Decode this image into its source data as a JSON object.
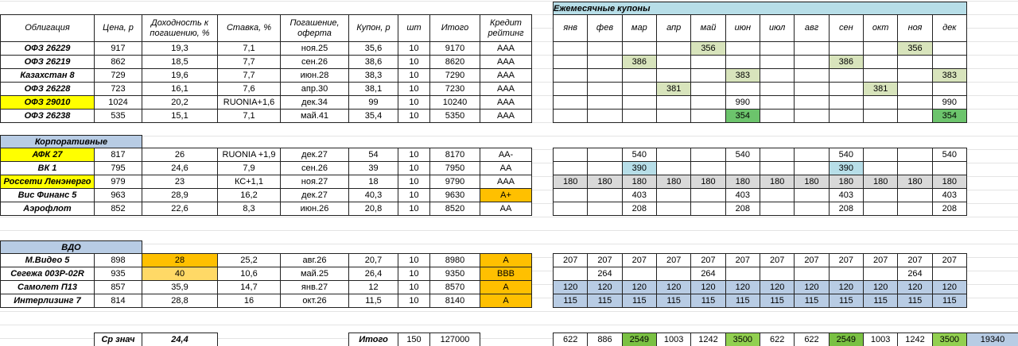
{
  "monthly_title": "Ежемесячные купоны",
  "header": [
    "Облигация",
    "Цена, р",
    "Доходность к погашению, %",
    "Ставка, %",
    "Погашение, оферта",
    "Купон, р",
    "шт",
    "Итого",
    "Кредит рейтинг"
  ],
  "months": [
    "янв",
    "фев",
    "мар",
    "апр",
    "май",
    "июн",
    "июл",
    "авг",
    "сен",
    "окт",
    "ноя",
    "дек"
  ],
  "groups": [
    {
      "rows": [
        {
          "cells": [
            "ОФЗ 26229",
            "917",
            "19,3",
            "7,1",
            "ноя.25",
            "35,6",
            "10",
            "9170",
            "ААА"
          ],
          "coupons": [
            null,
            null,
            null,
            null,
            356,
            null,
            null,
            null,
            null,
            null,
            356,
            null
          ]
        },
        {
          "cells": [
            "ОФЗ 26219",
            "862",
            "18,5",
            "7,7",
            "сен.26",
            "38,6",
            "10",
            "8620",
            "ААА"
          ],
          "coupons": [
            null,
            null,
            386,
            null,
            null,
            null,
            null,
            null,
            386,
            null,
            null,
            null
          ]
        },
        {
          "cells": [
            "Казахстан 8",
            "729",
            "19,6",
            "7,7",
            "июн.28",
            "38,3",
            "10",
            "7290",
            "ААА"
          ],
          "coupons": [
            null,
            null,
            null,
            null,
            null,
            383,
            null,
            null,
            null,
            null,
            null,
            383
          ]
        },
        {
          "cells": [
            "ОФЗ 26228",
            "723",
            "16,1",
            "7,6",
            "апр.30",
            "38,1",
            "10",
            "7230",
            "ААА"
          ],
          "coupons": [
            null,
            null,
            null,
            381,
            null,
            null,
            null,
            null,
            null,
            381,
            null,
            null
          ]
        },
        {
          "cells": [
            "ОФЗ 29010",
            "1024",
            "20,2",
            "RUONIA+1,6",
            "дек.34",
            "99",
            "10",
            "10240",
            "ААА"
          ],
          "coupons": [
            null,
            null,
            null,
            null,
            null,
            990,
            null,
            null,
            null,
            null,
            null,
            990
          ]
        },
        {
          "cells": [
            "ОФЗ 26238",
            "535",
            "15,1",
            "7,1",
            "май.41",
            "35,4",
            "10",
            "5350",
            "ААА"
          ],
          "coupons": [
            null,
            null,
            null,
            null,
            null,
            354,
            null,
            null,
            null,
            null,
            null,
            354
          ]
        }
      ]
    },
    {
      "title": "Корпоративные",
      "rows": [
        {
          "cells": [
            "АФК 27",
            "817",
            "26",
            "RUONIA +1,9",
            "дек.27",
            "54",
            "10",
            "8170",
            "AA-"
          ],
          "coupons": [
            null,
            null,
            540,
            null,
            null,
            540,
            null,
            null,
            540,
            null,
            null,
            540
          ]
        },
        {
          "cells": [
            "ВК 1",
            "795",
            "24,6",
            "7,9",
            "сен.26",
            "39",
            "10",
            "7950",
            "AA"
          ],
          "coupons": [
            null,
            null,
            390,
            null,
            null,
            null,
            null,
            null,
            390,
            null,
            null,
            null
          ]
        },
        {
          "cells": [
            "Россети Ленэнерго",
            "979",
            "23",
            "КС+1,1",
            "ноя.27",
            "18",
            "10",
            "9790",
            "ААА"
          ],
          "coupons": [
            180,
            180,
            180,
            180,
            180,
            180,
            180,
            180,
            180,
            180,
            180,
            180
          ]
        },
        {
          "cells": [
            "Вис Финанс 5",
            "963",
            "28,9",
            "16,2",
            "дек.27",
            "40,3",
            "10",
            "9630",
            "A+"
          ],
          "coupons": [
            null,
            null,
            403,
            null,
            null,
            403,
            null,
            null,
            403,
            null,
            null,
            403
          ]
        },
        {
          "cells": [
            "Аэрофлот",
            "852",
            "22,6",
            "8,3",
            "июн.26",
            "20,8",
            "10",
            "8520",
            "AA"
          ],
          "coupons": [
            null,
            null,
            208,
            null,
            null,
            208,
            null,
            null,
            208,
            null,
            null,
            208
          ]
        }
      ]
    },
    {
      "title": "ВДО",
      "rows": [
        {
          "cells": [
            "М.Видео 5",
            "898",
            "28",
            "25,2",
            "авг.26",
            "20,7",
            "10",
            "8980",
            "A"
          ],
          "coupons": [
            207,
            207,
            207,
            207,
            207,
            207,
            207,
            207,
            207,
            207,
            207,
            207
          ]
        },
        {
          "cells": [
            "Сегежа 003P-02R",
            "935",
            "40",
            "10,6",
            "май.25",
            "26,4",
            "10",
            "9350",
            "BBB"
          ],
          "coupons": [
            null,
            264,
            null,
            null,
            264,
            null,
            null,
            null,
            null,
            null,
            264,
            null
          ]
        },
        {
          "cells": [
            "Самолет П13",
            "857",
            "35,9",
            "14,7",
            "янв.27",
            "12",
            "10",
            "8570",
            "A"
          ],
          "coupons": [
            120,
            120,
            120,
            120,
            120,
            120,
            120,
            120,
            120,
            120,
            120,
            120
          ]
        },
        {
          "cells": [
            "Интерлизинг 7",
            "814",
            "28,8",
            "16",
            "окт.26",
            "11,5",
            "10",
            "8140",
            "A"
          ],
          "coupons": [
            115,
            115,
            115,
            115,
            115,
            115,
            115,
            115,
            115,
            115,
            115,
            115
          ]
        }
      ]
    }
  ],
  "summary": {
    "avg_label": "Ср знач",
    "avg_value": "24,4",
    "total_label": "Итого",
    "total_qty": "150",
    "total_sum": "127000",
    "monthly_totals": [
      622,
      886,
      2549,
      1003,
      1242,
      3500,
      622,
      622,
      2549,
      1003,
      1242,
      3500
    ],
    "grand_total": "19340"
  }
}
